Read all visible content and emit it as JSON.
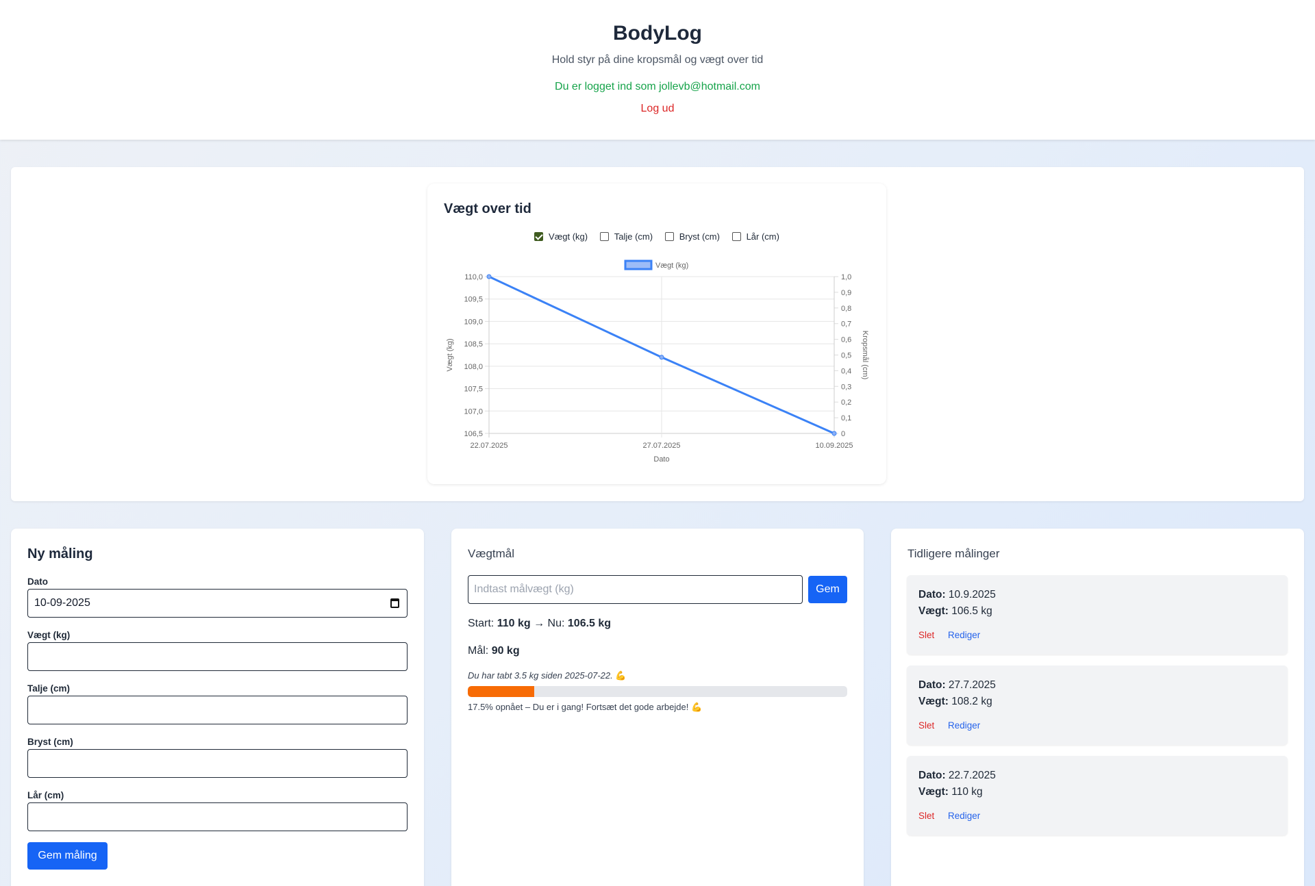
{
  "header": {
    "title": "BodyLog",
    "subtitle": "Hold styr på dine kropsmål og vægt over tid",
    "logged_in_text": "Du er logget ind som jollevb@hotmail.com",
    "logout_label": "Log ud"
  },
  "chart_section": {
    "title": "Vægt over tid",
    "toggles": [
      {
        "label": "Vægt (kg)",
        "checked": true
      },
      {
        "label": "Talje (cm)",
        "checked": false
      },
      {
        "label": "Bryst (cm)",
        "checked": false
      },
      {
        "label": "Lår (cm)",
        "checked": false
      }
    ]
  },
  "chart_data": {
    "type": "line",
    "title": "Vægt over tid",
    "categories": [
      "22.07.2025",
      "27.07.2025",
      "10.09.2025"
    ],
    "series": [
      {
        "name": "Vægt (kg)",
        "values": [
          110.0,
          108.2,
          106.5
        ],
        "color": "#3b82f6"
      }
    ],
    "xlabel": "Dato",
    "ylabel": "Vægt (kg)",
    "y2label": "Kropsmål (cm)",
    "ylim": [
      106.5,
      110.0
    ],
    "y_ticks": [
      "110,0",
      "109,5",
      "109,0",
      "108,5",
      "108,0",
      "107,5",
      "107,0",
      "106,5"
    ],
    "y2lim": [
      0,
      1.0
    ],
    "y2_ticks": [
      "1,0",
      "0,9",
      "0,8",
      "0,7",
      "0,6",
      "0,5",
      "0,4",
      "0,3",
      "0,2",
      "0,1",
      "0"
    ],
    "legend": [
      "Vægt (kg)"
    ],
    "legend_position": "top",
    "grid": true
  },
  "new_measurement": {
    "title": "Ny måling",
    "fields": [
      {
        "label": "Dato",
        "value": "10-09-2025",
        "type": "date"
      },
      {
        "label": "Vægt (kg)",
        "value": ""
      },
      {
        "label": "Talje (cm)",
        "value": ""
      },
      {
        "label": "Bryst (cm)",
        "value": ""
      },
      {
        "label": "Lår (cm)",
        "value": ""
      }
    ],
    "submit_label": "Gem måling"
  },
  "weight_goal": {
    "title": "Vægtmål",
    "input_placeholder": "Indtast målvægt (kg)",
    "input_value": "",
    "save_label": "Gem",
    "start_label": "Start:",
    "start_value": "110 kg",
    "arrow": "→",
    "now_label": "Nu:",
    "now_value": "106.5 kg",
    "goal_label": "Mål:",
    "goal_value": "90 kg",
    "since_text": "Du har tabt 3.5 kg siden 2025-07-22.",
    "progress_percent": 17.5,
    "progress_color": "#f76b05",
    "progress_text": "17.5% opnået – Du er i gang! Fortsæt det gode arbejde!",
    "emoji": "💪"
  },
  "history": {
    "title": "Tidligere målinger",
    "date_label": "Dato:",
    "weight_label": "Vægt:",
    "delete_label": "Slet",
    "edit_label": "Rediger",
    "entries": [
      {
        "date": "10.9.2025",
        "weight": "106.5 kg"
      },
      {
        "date": "27.7.2025",
        "weight": "108.2 kg"
      },
      {
        "date": "22.7.2025",
        "weight": "110 kg"
      }
    ]
  }
}
